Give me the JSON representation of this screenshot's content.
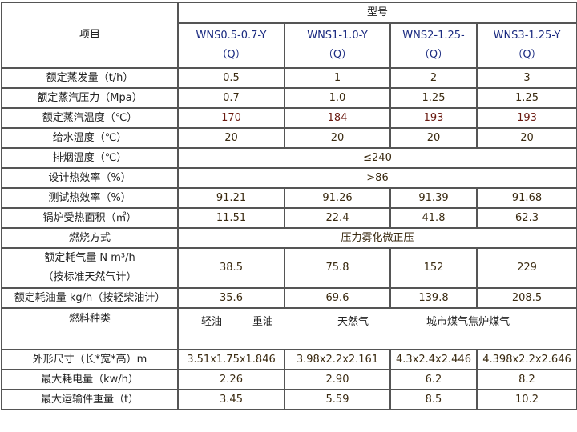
{
  "header": {
    "item_label": "项目",
    "model_label": "型号",
    "models": [
      {
        "name": "WNS0.5-0.7-Y",
        "suffix": "（Q）"
      },
      {
        "name": "WNS1-1.0-Y",
        "suffix": "（Q）"
      },
      {
        "name": "WNS2-1.25-",
        "suffix": "（Q）"
      },
      {
        "name": "WNS3-1.25-Y",
        "suffix": "（Q）"
      }
    ]
  },
  "rows": [
    {
      "label": "额定蒸发量（t/h）",
      "values": [
        "0.5",
        "1",
        "2",
        "3"
      ]
    },
    {
      "label": "额定蒸汽压力（Mpa）",
      "values": [
        "0.7",
        "1.0",
        "1.25",
        "1.25"
      ]
    },
    {
      "label": "额定蒸汽温度（℃）",
      "values": [
        "170",
        "184",
        "193",
        "193"
      ]
    },
    {
      "label": "给水温度（℃）",
      "values": [
        "20",
        "20",
        "20",
        "20"
      ]
    },
    {
      "label": "排烟温度（℃）",
      "merged": "≤240"
    },
    {
      "label": "设计热效率（%）",
      "merged": ">86"
    },
    {
      "label": "测试热效率（%）",
      "values": [
        "91.21",
        "91.26",
        "91.39",
        "91.68"
      ]
    },
    {
      "label": "锅炉受热面积（㎡）",
      "values": [
        "11.51",
        "22.4",
        "41.8",
        "62.3"
      ]
    },
    {
      "label": "燃烧方式",
      "merged": "压力雾化微正压"
    },
    {
      "label": "额定耗气量 N m³/h",
      "label2": "（按标准天然气计）",
      "values": [
        "38.5",
        "75.8",
        "152",
        "229"
      ]
    },
    {
      "label": "额定耗油量 kg/h（按轻柴油计）",
      "values": [
        "35.6",
        "69.6",
        "139.8",
        "208.5"
      ]
    },
    {
      "label": "燃料种类",
      "fuels": [
        "轻油",
        "重油",
        "天然气",
        "城市煤气",
        "焦炉煤气"
      ]
    },
    {
      "label": "外形尺寸（长*宽*高）m",
      "values": [
        "3.51x1.75x1.846",
        "3.98x2.2x2.161",
        "4.3x2.4x2.446",
        "4.398x2.2x2.646"
      ]
    },
    {
      "label": "最大耗电量（kw/h）",
      "values": [
        "2.26",
        "2.90",
        "6.2",
        "8.2"
      ]
    },
    {
      "label": "最大运输件重量（t）",
      "values": [
        "3.45",
        "5.59",
        "8.5",
        "10.2"
      ]
    }
  ]
}
